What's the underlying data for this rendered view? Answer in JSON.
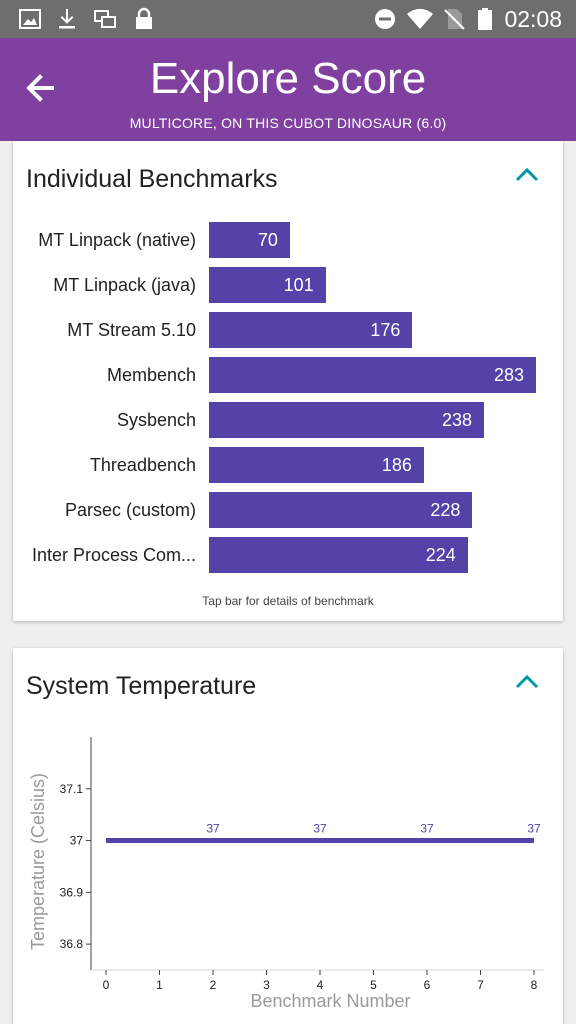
{
  "status_bar": {
    "time": "02:08",
    "left_icons": [
      "image-icon",
      "download-icon",
      "screens-icon",
      "lock-icon"
    ],
    "right_icons": [
      "do-not-disturb-icon",
      "wifi-icon",
      "no-sim-icon",
      "battery-icon"
    ]
  },
  "app_bar": {
    "title": "Explore Score",
    "subtitle": "MULTICORE, ON THIS CUBOT DINOSAUR (6.0)",
    "color": "#8040a0"
  },
  "benchmarks_card": {
    "title": "Individual Benchmarks",
    "hint": "Tap bar for details of benchmark",
    "bar_color": "#5442a8",
    "items": [
      {
        "label": "MT Linpack (native)",
        "value": 70
      },
      {
        "label": "MT Linpack (java)",
        "value": 101
      },
      {
        "label": "MT Stream 5.10",
        "value": 176
      },
      {
        "label": "Membench",
        "value": 283
      },
      {
        "label": "Sysbench",
        "value": 238
      },
      {
        "label": "Threadbench",
        "value": 186
      },
      {
        "label": "Parsec (custom)",
        "value": 228
      },
      {
        "label": "Inter Process Com...",
        "value": 224
      }
    ]
  },
  "temperature_card": {
    "title": "System Temperature"
  },
  "chart_data": {
    "type": "line",
    "xlabel": "Benchmark Number",
    "ylabel": "Temperature (Celsius)",
    "x_ticks": [
      0,
      1,
      2,
      3,
      4,
      5,
      6,
      7,
      8
    ],
    "y_ticks": [
      36.8,
      36.9,
      37,
      37.1
    ],
    "y_tick_labels": [
      "36.8",
      "36.9",
      "37",
      "37.1"
    ],
    "x": [
      0,
      1,
      2,
      3,
      4,
      5,
      6,
      7,
      8
    ],
    "y": [
      37,
      37,
      37,
      37,
      37,
      37,
      37,
      37,
      37
    ],
    "data_labels": [
      {
        "x": 2,
        "text": "37"
      },
      {
        "x": 4,
        "text": "37"
      },
      {
        "x": 6,
        "text": "37"
      },
      {
        "x": 8,
        "text": "37"
      }
    ],
    "xlim": [
      0,
      8
    ],
    "ylim": [
      36.75,
      37.2
    ],
    "line_color": "#5442a8",
    "grid": false
  }
}
